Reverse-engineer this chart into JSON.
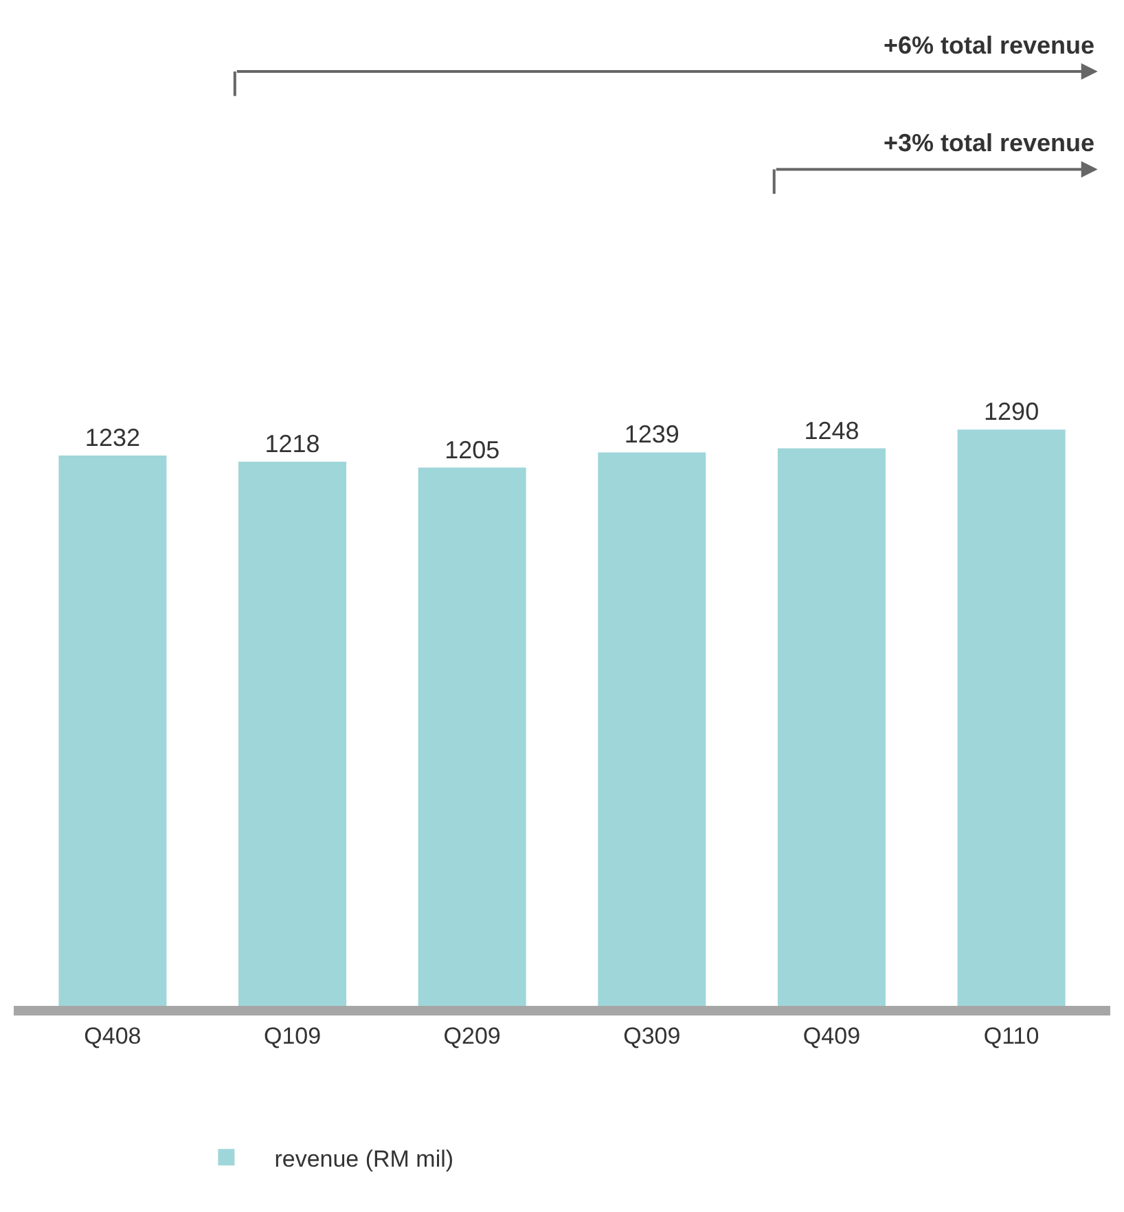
{
  "chart_data": {
    "type": "bar",
    "categories": [
      "Q408",
      "Q109",
      "Q209",
      "Q309",
      "Q409",
      "Q110"
    ],
    "series": [
      {
        "name": "revenue (RM mil)",
        "color": "#9fd6d9",
        "values": [
          1232,
          1218,
          1205,
          1239,
          1248,
          1290
        ]
      }
    ],
    "data_labels": true,
    "tick_labels": "x",
    "legend": "bottom",
    "annotations": [
      "+6% total revenue",
      "+3% total revenue"
    ]
  }
}
